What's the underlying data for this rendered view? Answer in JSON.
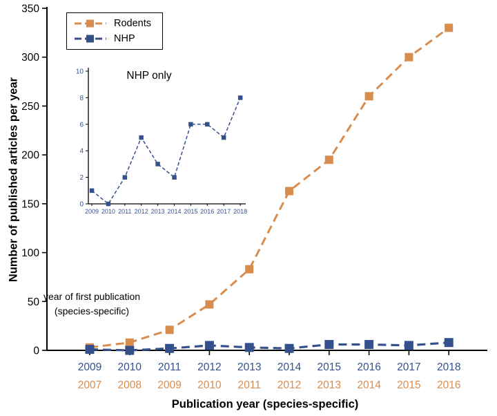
{
  "figure": {
    "colors": {
      "rodents": "#D88C4E",
      "nhp": "#34518C",
      "axis": "#000000",
      "background": "#FFFFFF"
    }
  },
  "chart_data": {
    "type": "line",
    "title": "",
    "xlabel": "Publication year (species-specific)",
    "ylabel": "Number of published articles per year",
    "ylim": [
      0,
      350
    ],
    "yticks": [
      0,
      50,
      100,
      150,
      200,
      250,
      300,
      350
    ],
    "x_ticks_primary": [
      "2009",
      "2010",
      "2011",
      "2012",
      "2013",
      "2014",
      "2015",
      "2016",
      "2017",
      "2018"
    ],
    "x_ticks_secondary": [
      "2007",
      "2008",
      "2009",
      "2010",
      "2011",
      "2012",
      "2013",
      "2014",
      "2015",
      "2016"
    ],
    "series": [
      {
        "name": "Rodents",
        "color_key": "rodents",
        "values": [
          3,
          8,
          21,
          47,
          83,
          163,
          195,
          260,
          300,
          330
        ]
      },
      {
        "name": "NHP",
        "color_key": "nhp",
        "values": [
          1,
          0,
          2,
          5,
          3,
          2,
          6,
          6,
          5,
          8
        ]
      }
    ],
    "legend": {
      "position": "top-left",
      "items": [
        "Rodents",
        "NHP"
      ]
    },
    "annotation": {
      "line1": "year of first publication",
      "line2": "(species-specific)"
    },
    "inset": {
      "title": "NHP only",
      "ylim": [
        0,
        10
      ],
      "yticks": [
        0,
        2,
        4,
        6,
        8,
        10
      ],
      "x": [
        "2009",
        "2010",
        "2011",
        "2012",
        "2013",
        "2014",
        "2015",
        "2016",
        "2017",
        "2018"
      ],
      "values": [
        1,
        0,
        2,
        5,
        3,
        2,
        6,
        6,
        5,
        8
      ]
    }
  }
}
